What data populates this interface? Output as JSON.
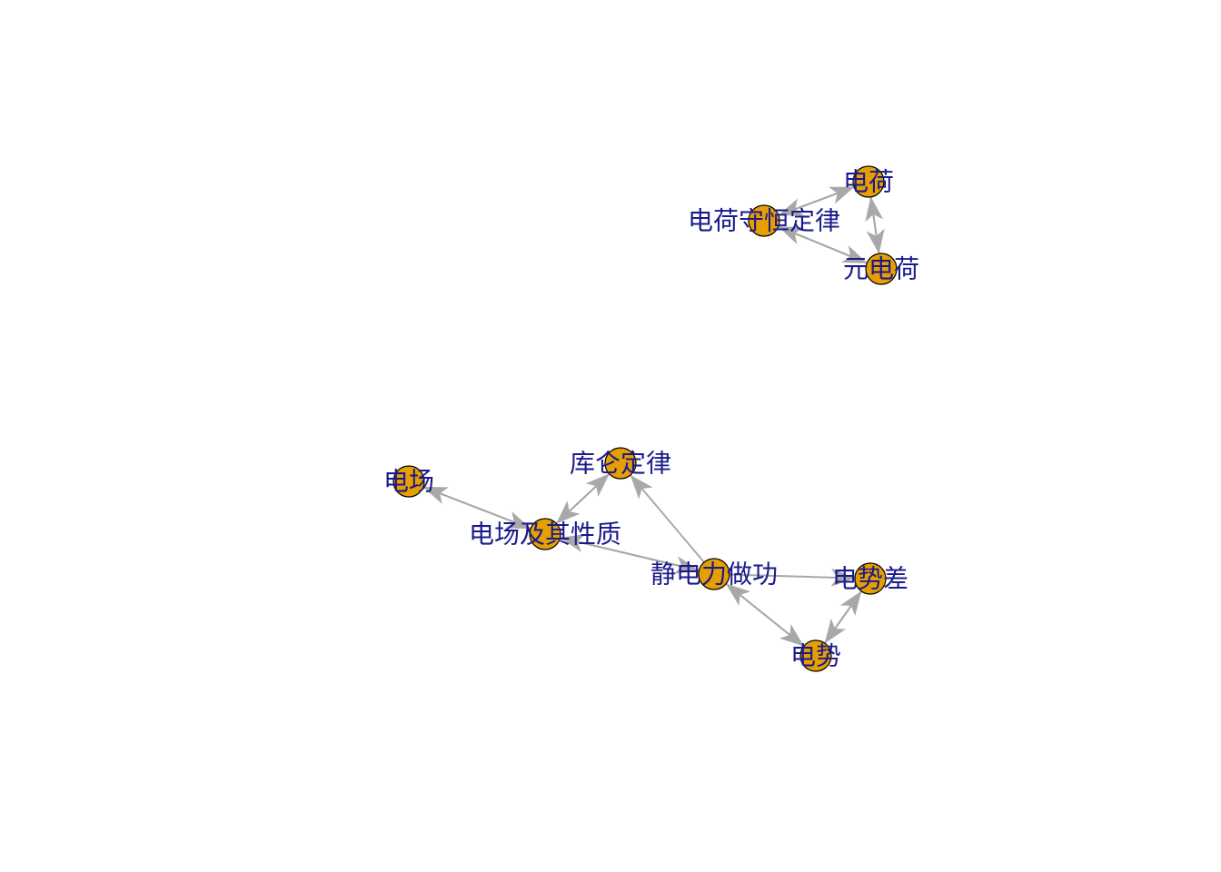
{
  "colors": {
    "node_fill": "#E69F00",
    "node_stroke": "#000000",
    "edge": "#A8A8A8",
    "label": "#1A1A8C",
    "background": "#FFFFFF"
  },
  "nodes": [
    {
      "id": "dianhe",
      "label": "电荷"
    },
    {
      "id": "shouheng",
      "label": "电荷守恒定律"
    },
    {
      "id": "yuandianhe",
      "label": "元电荷"
    },
    {
      "id": "kulun",
      "label": "库仑定律"
    },
    {
      "id": "dianchang",
      "label": "电场"
    },
    {
      "id": "xingzhi",
      "label": "电场及其性质"
    },
    {
      "id": "jingdianli",
      "label": "静电力做功"
    },
    {
      "id": "dianshicha",
      "label": "电势差"
    },
    {
      "id": "dianshi",
      "label": "电势"
    }
  ],
  "edges": [
    {
      "from": "dianhe",
      "to": "shouheng"
    },
    {
      "from": "shouheng",
      "to": "dianhe"
    },
    {
      "from": "dianhe",
      "to": "yuandianhe"
    },
    {
      "from": "yuandianhe",
      "to": "dianhe"
    },
    {
      "from": "shouheng",
      "to": "yuandianhe"
    },
    {
      "from": "yuandianhe",
      "to": "shouheng"
    },
    {
      "from": "xingzhi",
      "to": "dianchang"
    },
    {
      "from": "dianchang",
      "to": "xingzhi"
    },
    {
      "from": "xingzhi",
      "to": "kulun"
    },
    {
      "from": "kulun",
      "to": "xingzhi"
    },
    {
      "from": "jingdianli",
      "to": "kulun"
    },
    {
      "from": "xingzhi",
      "to": "jingdianli"
    },
    {
      "from": "jingdianli",
      "to": "xingzhi"
    },
    {
      "from": "jingdianli",
      "to": "dianshicha"
    },
    {
      "from": "jingdianli",
      "to": "dianshi"
    },
    {
      "from": "dianshi",
      "to": "jingdianli"
    },
    {
      "from": "dianshi",
      "to": "dianshicha"
    },
    {
      "from": "dianshicha",
      "to": "dianshi"
    }
  ]
}
